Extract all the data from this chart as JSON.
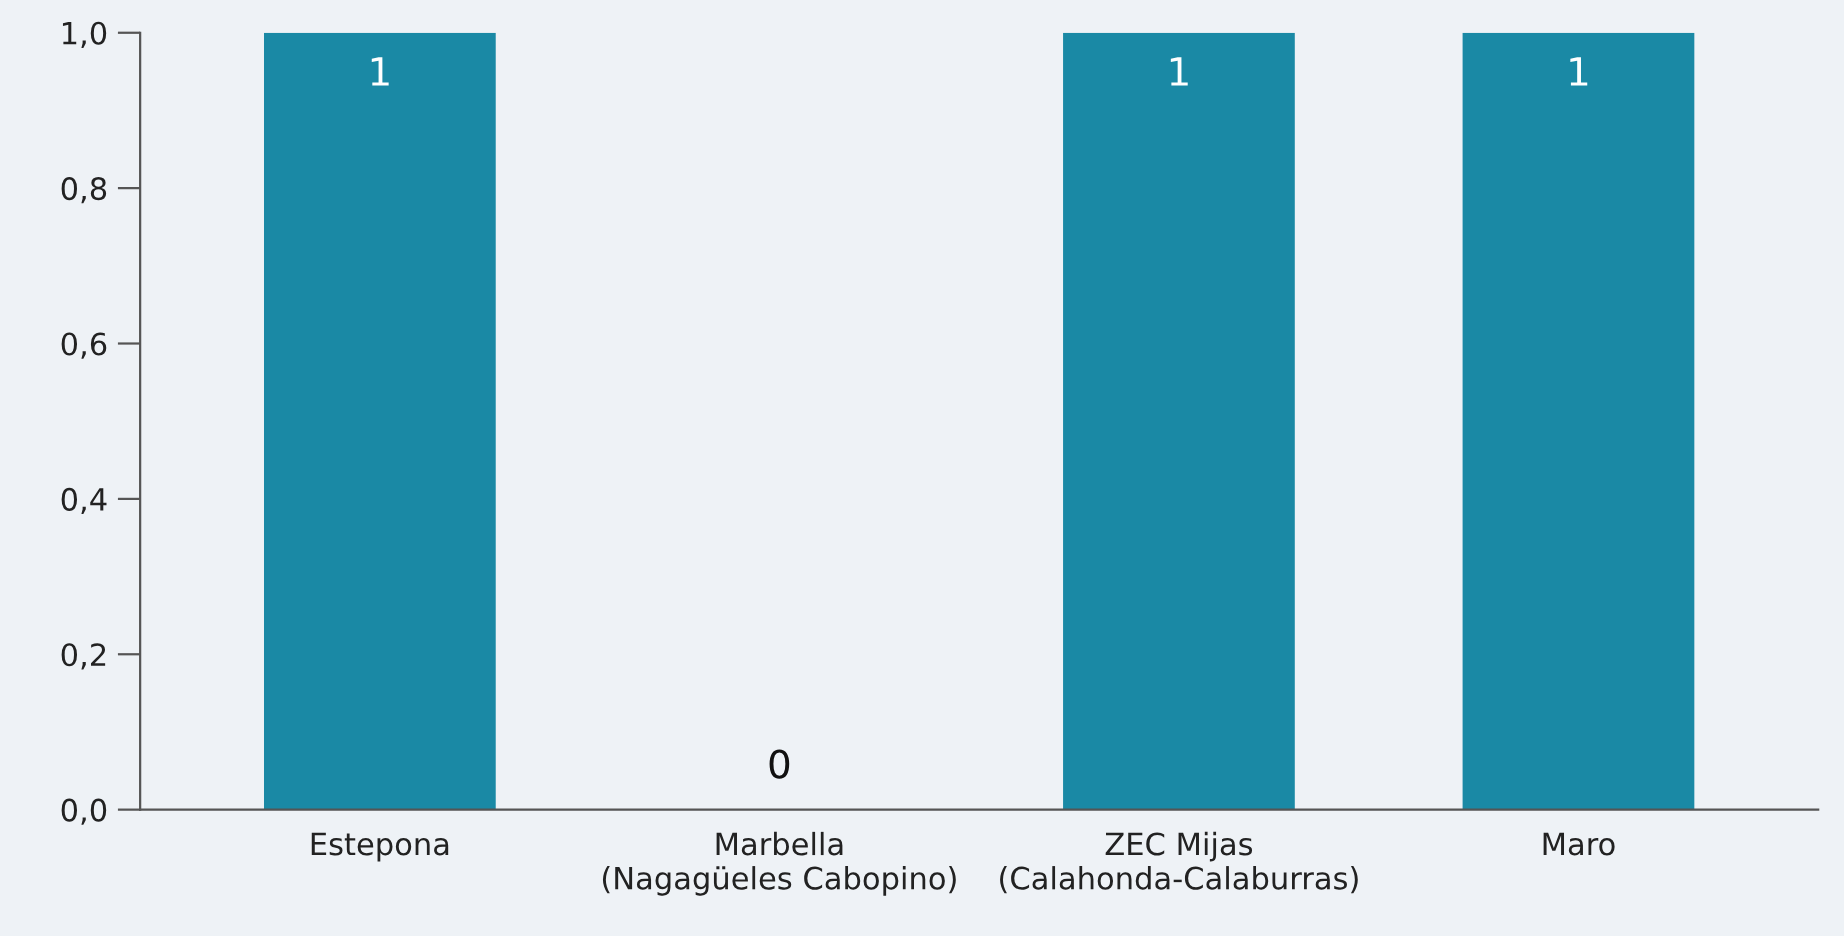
{
  "chart_data": {
    "type": "bar",
    "categories": [
      "Estepona",
      "Marbella\n(Nagagüeles Cabopino)",
      "ZEC Mijas\n(Calahonda-Calaburras)",
      "Maro"
    ],
    "values": [
      1,
      0,
      1,
      1
    ],
    "color": "#1a89a5",
    "data_labels": true,
    "ylim": [
      0,
      1
    ],
    "yticks": [
      {
        "value": 0,
        "label": "0,0"
      },
      {
        "value": 0.2,
        "label": "0,2"
      },
      {
        "value": 0.4,
        "label": "0,4"
      },
      {
        "value": 0.6,
        "label": "0,6"
      },
      {
        "value": 0.8,
        "label": "0,8"
      },
      {
        "value": 1,
        "label": "1,0"
      }
    ],
    "grid": false
  }
}
